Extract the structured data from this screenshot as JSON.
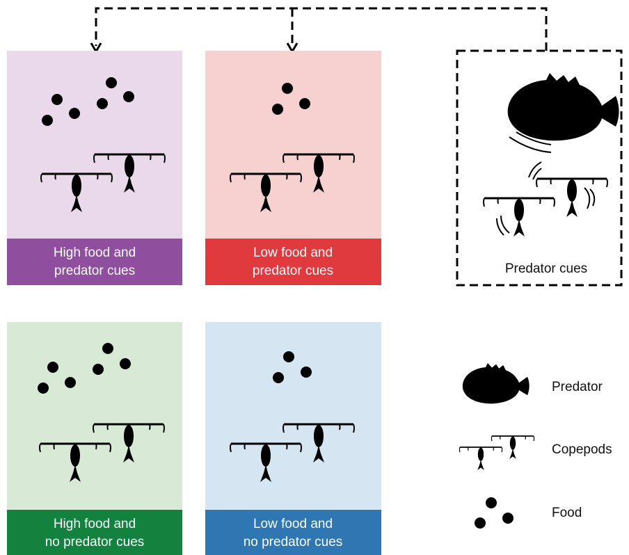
{
  "panels": [
    {
      "lines": [
        "High food and",
        "predator cues"
      ]
    },
    {
      "lines": [
        "Low food and",
        "predator cues"
      ]
    },
    {
      "lines": [
        "Predator cues"
      ]
    },
    {
      "lines": [
        "High food and",
        "no predator cues"
      ]
    },
    {
      "lines": [
        "Low food and",
        "no predator cues"
      ]
    }
  ],
  "legend": [
    {
      "label": "Predator"
    },
    {
      "label": "Copepods"
    },
    {
      "label": "Food"
    }
  ]
}
